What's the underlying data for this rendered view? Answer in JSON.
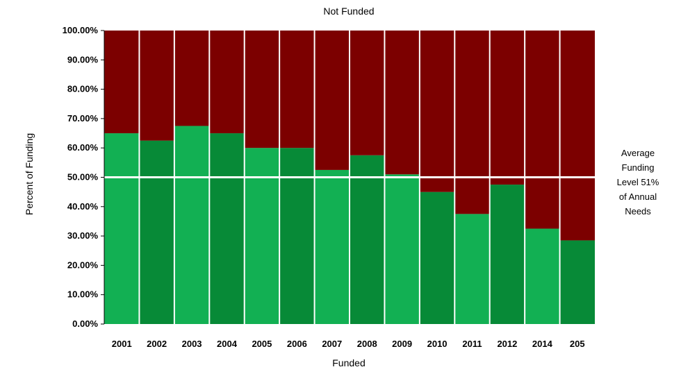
{
  "chart_data": {
    "type": "bar",
    "stacked": true,
    "percent_stacked": true,
    "title": "Not Funded",
    "xlabel": "Funded",
    "ylabel": "Percent of Funding",
    "categories": [
      "2001",
      "2002",
      "2003",
      "2004",
      "2005",
      "2006",
      "2007",
      "2008",
      "2009",
      "2010",
      "2011",
      "2012",
      "2014",
      "205"
    ],
    "series": [
      {
        "values": [
          65,
          62.5,
          67.5,
          65,
          60,
          60,
          52.5,
          57.5,
          51,
          45,
          37.5,
          47.5,
          32.5,
          28.5
        ],
        "colors": [
          "#12b053",
          "#078a37"
        ]
      },
      {
        "values": [
          35,
          37.5,
          32.5,
          35,
          40,
          40,
          47.5,
          42.5,
          49,
          55,
          62.5,
          52.5,
          67.5,
          71.5
        ],
        "color": "#7c0000"
      }
    ],
    "ylim": [
      0,
      100
    ],
    "yticks": [
      "0.00%",
      "10.00%",
      "20.00%",
      "30.00%",
      "40.00%",
      "50.00%",
      "60.00%",
      "70.00%",
      "80.00%",
      "90.00%",
      "100.00%"
    ],
    "reference_line": {
      "value": 50,
      "color": "#ffffff",
      "label_lines": [
        "Average",
        "Funding",
        "Level 51%",
        "of Annual",
        "Needs"
      ]
    },
    "grid": false,
    "legend": "none"
  }
}
